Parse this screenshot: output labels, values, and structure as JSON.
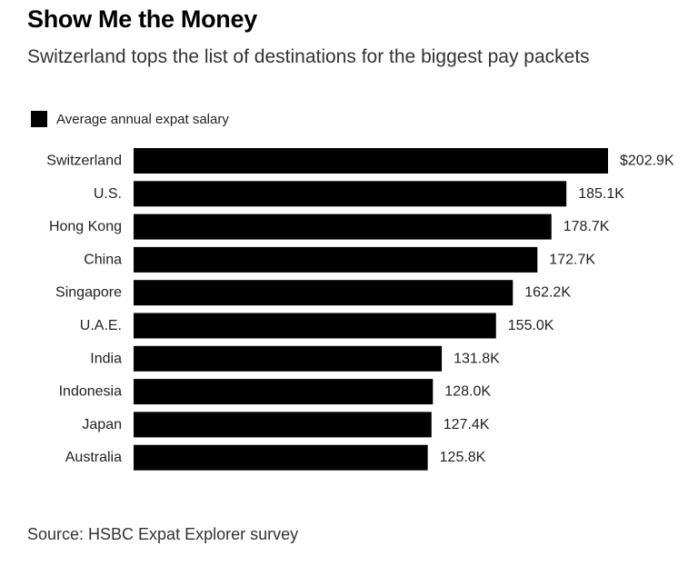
{
  "chart_data": {
    "type": "bar",
    "orientation": "horizontal",
    "title": "Show Me the Money",
    "subtitle": "Switzerland tops the list of destinations for the biggest pay packets",
    "legend": {
      "entries": [
        "Average annual expat salary"
      ],
      "placement": "top-left"
    },
    "categories": [
      "Switzerland",
      "U.S.",
      "Hong Kong",
      "China",
      "Singapore",
      "U.A.E.",
      "India",
      "Indonesia",
      "Japan",
      "Australia"
    ],
    "series": [
      {
        "name": "Average annual expat salary",
        "values": [
          202.9,
          185.1,
          178.7,
          172.7,
          162.2,
          155.0,
          131.8,
          128.0,
          127.4,
          125.8
        ],
        "labels": [
          "$202.9K",
          "185.1K",
          "178.7K",
          "172.7K",
          "162.2K",
          "155.0K",
          "131.8K",
          "128.0K",
          "127.4K",
          "125.8K"
        ],
        "color": "#000000"
      }
    ],
    "unit": "thousand US dollars",
    "xlim": [
      0,
      202.9
    ],
    "grid": false
  },
  "source": "Source: HSBC Expat Explorer survey"
}
